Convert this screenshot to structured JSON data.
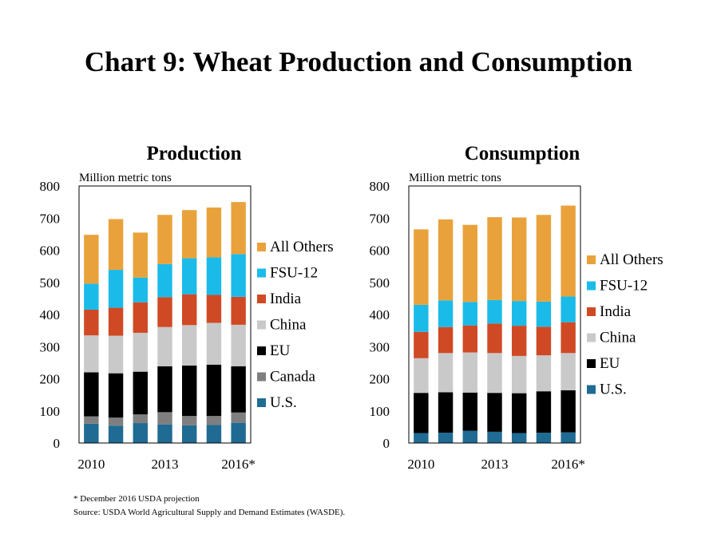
{
  "title": "Chart 9: Wheat Production and Consumption",
  "footnote": "* December 2016 USDA projection",
  "source": "Source: USDA World Agricultural Supply and Demand Estimates (WASDE).",
  "colors": {
    "U.S.": "#1f6b94",
    "Canada": "#7f7f7f",
    "EU": "#000000",
    "China": "#c9c9c9",
    "India": "#cf4a24",
    "FSU-12": "#1bbbe9",
    "All Others": "#e9a23b"
  },
  "chart_data": [
    {
      "type": "bar",
      "stacked": true,
      "title": "Production",
      "ylabel": "Million metric tons",
      "ylim": [
        0,
        800
      ],
      "yticks": [
        "0",
        "100",
        "200",
        "300",
        "400",
        "500",
        "600",
        "700",
        "800"
      ],
      "xtick_labels": [
        "2010",
        "2013",
        "2016*"
      ],
      "categories": [
        "2010",
        "2011",
        "2012",
        "2013",
        "2014",
        "2015",
        "2016*"
      ],
      "legend": [
        "All Others",
        "FSU-12",
        "India",
        "China",
        "EU",
        "Canada",
        "U.S."
      ],
      "series": [
        {
          "name": "U.S.",
          "values": [
            60,
            54,
            62,
            58,
            55,
            56,
            63
          ]
        },
        {
          "name": "Canada",
          "values": [
            23,
            25,
            27,
            38,
            29,
            28,
            32
          ]
        },
        {
          "name": "EU",
          "values": [
            137,
            138,
            133,
            143,
            157,
            160,
            144
          ]
        },
        {
          "name": "China",
          "values": [
            115,
            117,
            121,
            122,
            126,
            130,
            129
          ]
        },
        {
          "name": "India",
          "values": [
            80,
            87,
            95,
            93,
            96,
            87,
            87
          ]
        },
        {
          "name": "FSU-12",
          "values": [
            81,
            118,
            77,
            103,
            112,
            117,
            133
          ]
        },
        {
          "name": "All Others",
          "values": [
            152,
            158,
            140,
            153,
            150,
            155,
            162
          ]
        }
      ]
    },
    {
      "type": "bar",
      "stacked": true,
      "title": "Consumption",
      "ylabel": "Million metric tons",
      "ylim": [
        0,
        800
      ],
      "yticks": [
        "0",
        "100",
        "200",
        "300",
        "400",
        "500",
        "600",
        "700",
        "800"
      ],
      "xtick_labels": [
        "2010",
        "2013",
        "2016*"
      ],
      "categories": [
        "2010",
        "2011",
        "2012",
        "2013",
        "2014",
        "2015",
        "2016*"
      ],
      "legend": [
        "All Others",
        "FSU-12",
        "India",
        "China",
        "EU",
        "U.S."
      ],
      "series": [
        {
          "name": "U.S.",
          "values": [
            31,
            32,
            38,
            35,
            31,
            32,
            33
          ]
        },
        {
          "name": "EU",
          "values": [
            125,
            126,
            119,
            121,
            124,
            129,
            131
          ]
        },
        {
          "name": "China",
          "values": [
            108,
            122,
            125,
            124,
            116,
            112,
            116
          ]
        },
        {
          "name": "India",
          "values": [
            82,
            81,
            84,
            92,
            94,
            89,
            96
          ]
        },
        {
          "name": "FSU-12",
          "values": [
            84,
            83,
            73,
            73,
            77,
            78,
            80
          ]
        },
        {
          "name": "All Others",
          "values": [
            235,
            252,
            240,
            258,
            260,
            270,
            283
          ]
        }
      ]
    }
  ]
}
